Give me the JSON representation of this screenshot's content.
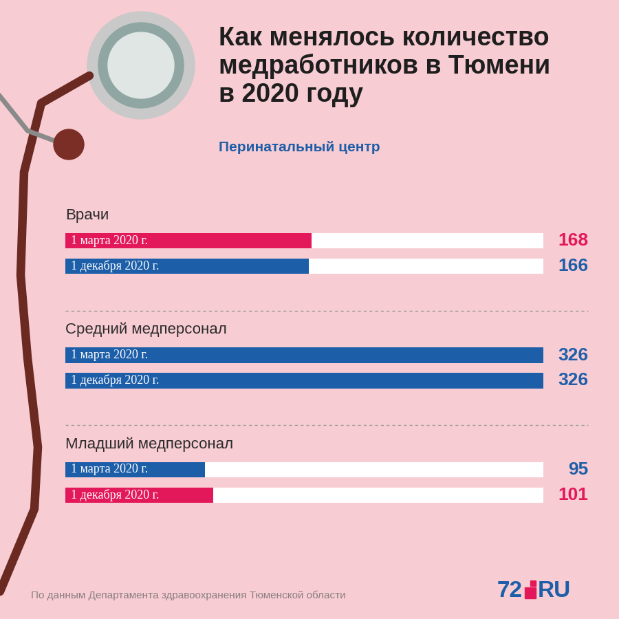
{
  "chart_data": {
    "type": "bar",
    "orientation": "horizontal",
    "title": "Как менялось количество\nмедработников в Тюмени\nв 2020 году",
    "subtitle": "Перинатальный центр",
    "categories": [
      "Врачи",
      "Средний медперсонал",
      "Младший медперсонал"
    ],
    "series": [
      {
        "name": "1 марта 2020 г.",
        "colors": [
          "#e3185b",
          "#1d5ea8",
          "#1d5ea8"
        ],
        "values": [
          168,
          326,
          95
        ]
      },
      {
        "name": "1 декабря 2020 г.",
        "colors": [
          "#1d5ea8",
          "#1d5ea8",
          "#e3185b"
        ],
        "values": [
          166,
          326,
          101
        ]
      }
    ],
    "xlim": [
      0,
      326
    ],
    "data_labels": true,
    "tick_labels": false,
    "annotations": [
      "По данным Департамента здравоохранения Тюменской области",
      "72",
      "RU"
    ]
  }
}
